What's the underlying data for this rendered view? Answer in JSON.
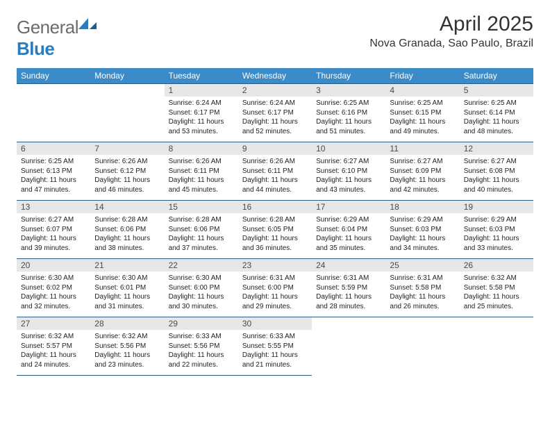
{
  "logo": {
    "general": "General",
    "blue": "Blue"
  },
  "title": "April 2025",
  "location": "Nova Granada, Sao Paulo, Brazil",
  "colors": {
    "header_bg": "#3b8bc9",
    "header_text": "#ffffff",
    "daynum_bg": "#e7e7e7",
    "daynum_text": "#4a4a4a",
    "border": "#2a5a85",
    "body_text": "#222222",
    "title_text": "#333333",
    "logo_gray": "#6b6b6b",
    "logo_blue": "#2b7bbf"
  },
  "typography": {
    "title_fontsize": 30,
    "location_fontsize": 16,
    "header_fontsize": 12,
    "daynum_fontsize": 12,
    "body_fontsize": 10
  },
  "weekdays": [
    "Sunday",
    "Monday",
    "Tuesday",
    "Wednesday",
    "Thursday",
    "Friday",
    "Saturday"
  ],
  "weeks": [
    [
      null,
      null,
      {
        "num": "1",
        "sunrise": "6:24 AM",
        "sunset": "6:17 PM",
        "daylight": "11 hours and 53 minutes."
      },
      {
        "num": "2",
        "sunrise": "6:24 AM",
        "sunset": "6:17 PM",
        "daylight": "11 hours and 52 minutes."
      },
      {
        "num": "3",
        "sunrise": "6:25 AM",
        "sunset": "6:16 PM",
        "daylight": "11 hours and 51 minutes."
      },
      {
        "num": "4",
        "sunrise": "6:25 AM",
        "sunset": "6:15 PM",
        "daylight": "11 hours and 49 minutes."
      },
      {
        "num": "5",
        "sunrise": "6:25 AM",
        "sunset": "6:14 PM",
        "daylight": "11 hours and 48 minutes."
      }
    ],
    [
      {
        "num": "6",
        "sunrise": "6:25 AM",
        "sunset": "6:13 PM",
        "daylight": "11 hours and 47 minutes."
      },
      {
        "num": "7",
        "sunrise": "6:26 AM",
        "sunset": "6:12 PM",
        "daylight": "11 hours and 46 minutes."
      },
      {
        "num": "8",
        "sunrise": "6:26 AM",
        "sunset": "6:11 PM",
        "daylight": "11 hours and 45 minutes."
      },
      {
        "num": "9",
        "sunrise": "6:26 AM",
        "sunset": "6:11 PM",
        "daylight": "11 hours and 44 minutes."
      },
      {
        "num": "10",
        "sunrise": "6:27 AM",
        "sunset": "6:10 PM",
        "daylight": "11 hours and 43 minutes."
      },
      {
        "num": "11",
        "sunrise": "6:27 AM",
        "sunset": "6:09 PM",
        "daylight": "11 hours and 42 minutes."
      },
      {
        "num": "12",
        "sunrise": "6:27 AM",
        "sunset": "6:08 PM",
        "daylight": "11 hours and 40 minutes."
      }
    ],
    [
      {
        "num": "13",
        "sunrise": "6:27 AM",
        "sunset": "6:07 PM",
        "daylight": "11 hours and 39 minutes."
      },
      {
        "num": "14",
        "sunrise": "6:28 AM",
        "sunset": "6:06 PM",
        "daylight": "11 hours and 38 minutes."
      },
      {
        "num": "15",
        "sunrise": "6:28 AM",
        "sunset": "6:06 PM",
        "daylight": "11 hours and 37 minutes."
      },
      {
        "num": "16",
        "sunrise": "6:28 AM",
        "sunset": "6:05 PM",
        "daylight": "11 hours and 36 minutes."
      },
      {
        "num": "17",
        "sunrise": "6:29 AM",
        "sunset": "6:04 PM",
        "daylight": "11 hours and 35 minutes."
      },
      {
        "num": "18",
        "sunrise": "6:29 AM",
        "sunset": "6:03 PM",
        "daylight": "11 hours and 34 minutes."
      },
      {
        "num": "19",
        "sunrise": "6:29 AM",
        "sunset": "6:03 PM",
        "daylight": "11 hours and 33 minutes."
      }
    ],
    [
      {
        "num": "20",
        "sunrise": "6:30 AM",
        "sunset": "6:02 PM",
        "daylight": "11 hours and 32 minutes."
      },
      {
        "num": "21",
        "sunrise": "6:30 AM",
        "sunset": "6:01 PM",
        "daylight": "11 hours and 31 minutes."
      },
      {
        "num": "22",
        "sunrise": "6:30 AM",
        "sunset": "6:00 PM",
        "daylight": "11 hours and 30 minutes."
      },
      {
        "num": "23",
        "sunrise": "6:31 AM",
        "sunset": "6:00 PM",
        "daylight": "11 hours and 29 minutes."
      },
      {
        "num": "24",
        "sunrise": "6:31 AM",
        "sunset": "5:59 PM",
        "daylight": "11 hours and 28 minutes."
      },
      {
        "num": "25",
        "sunrise": "6:31 AM",
        "sunset": "5:58 PM",
        "daylight": "11 hours and 26 minutes."
      },
      {
        "num": "26",
        "sunrise": "6:32 AM",
        "sunset": "5:58 PM",
        "daylight": "11 hours and 25 minutes."
      }
    ],
    [
      {
        "num": "27",
        "sunrise": "6:32 AM",
        "sunset": "5:57 PM",
        "daylight": "11 hours and 24 minutes."
      },
      {
        "num": "28",
        "sunrise": "6:32 AM",
        "sunset": "5:56 PM",
        "daylight": "11 hours and 23 minutes."
      },
      {
        "num": "29",
        "sunrise": "6:33 AM",
        "sunset": "5:56 PM",
        "daylight": "11 hours and 22 minutes."
      },
      {
        "num": "30",
        "sunrise": "6:33 AM",
        "sunset": "5:55 PM",
        "daylight": "11 hours and 21 minutes."
      },
      null,
      null,
      null
    ]
  ]
}
